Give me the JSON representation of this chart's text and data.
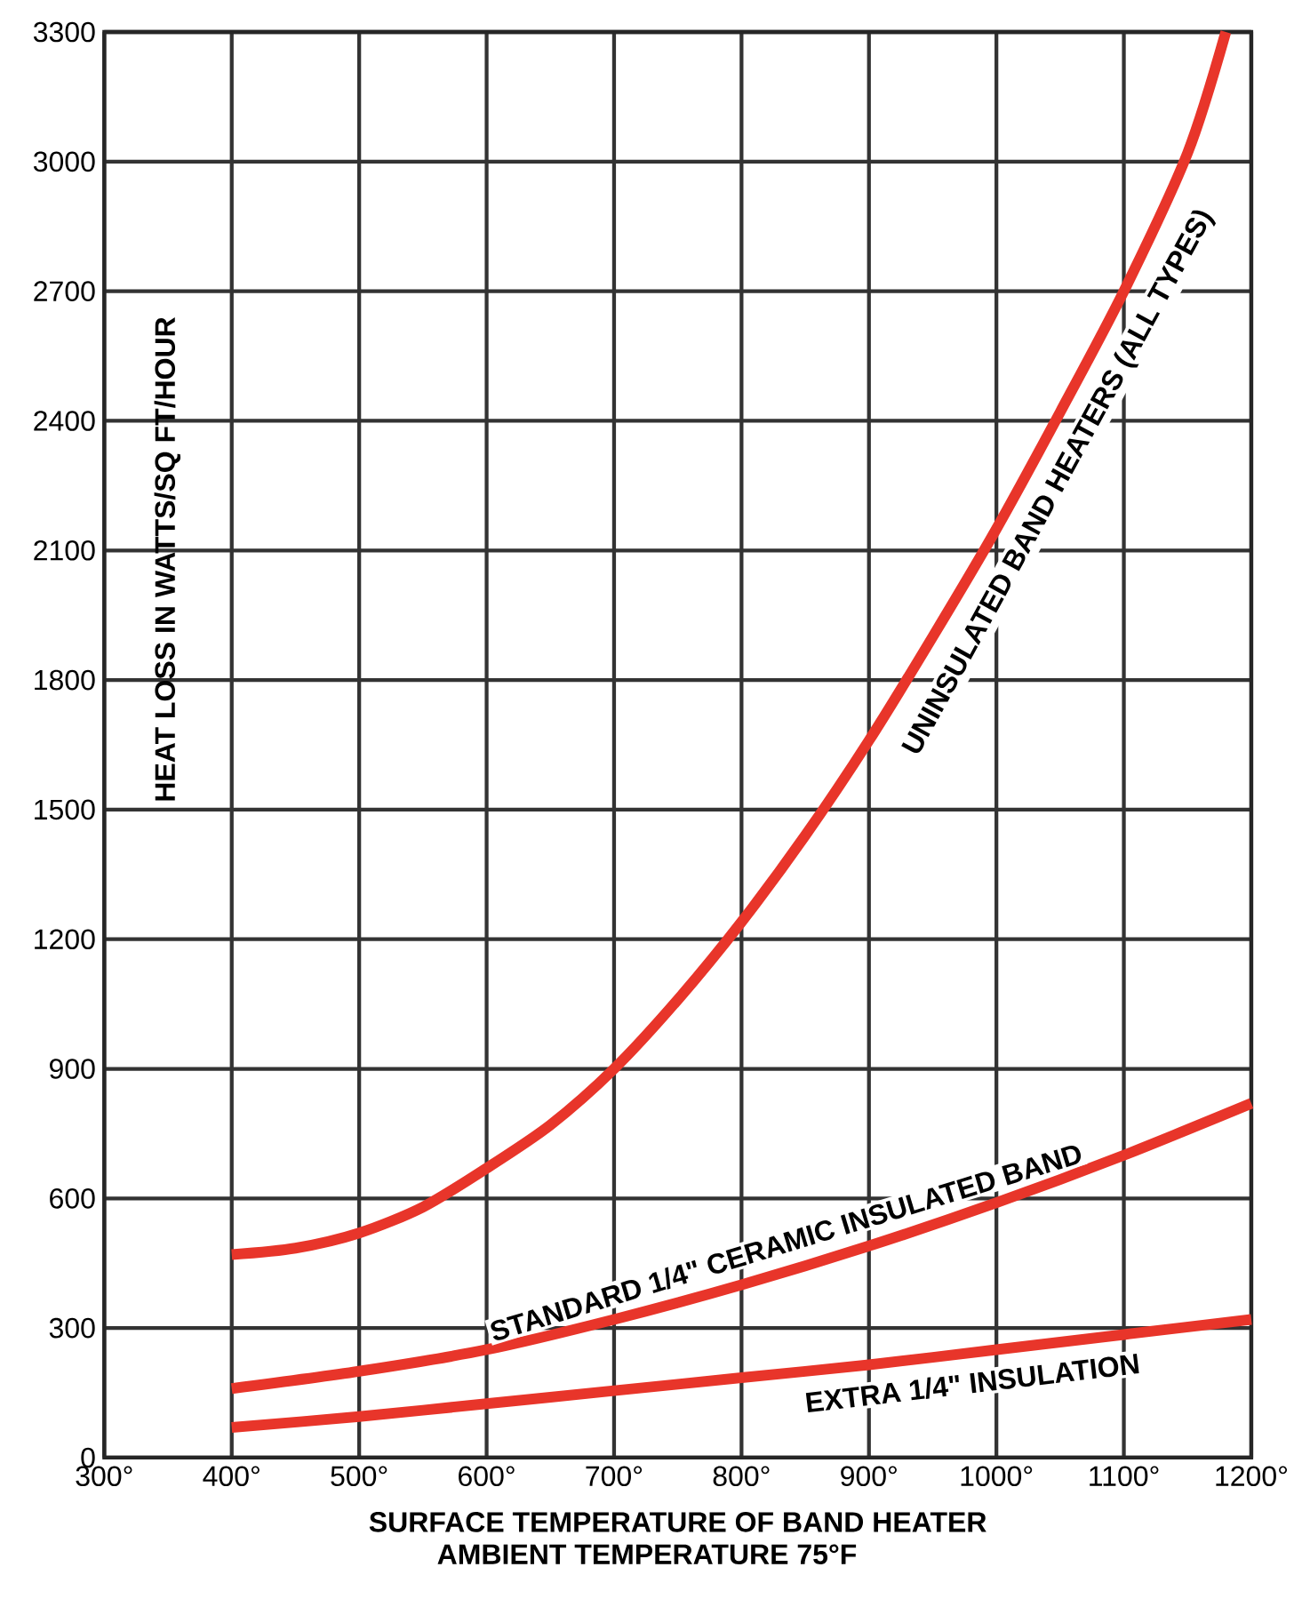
{
  "chart_data": {
    "type": "line",
    "xlabel": "SURFACE TEMPERATURE OF BAND HEATER",
    "ylabel": "HEAT LOSS IN WATTS/SQ FT/HOUR",
    "annotations": [
      "AMBIENT TEMPERATURE 75°F"
    ],
    "xlim": [
      300,
      1200
    ],
    "ylim": [
      0,
      3300
    ],
    "xticks": [
      {
        "value": 300,
        "label": "300°"
      },
      {
        "value": 400,
        "label": "400°"
      },
      {
        "value": 500,
        "label": "500°"
      },
      {
        "value": 600,
        "label": "600°"
      },
      {
        "value": 700,
        "label": "700°"
      },
      {
        "value": 800,
        "label": "800°"
      },
      {
        "value": 900,
        "label": "900°"
      },
      {
        "value": 1000,
        "label": "1000°"
      },
      {
        "value": 1100,
        "label": "1100°"
      },
      {
        "value": 1200,
        "label": "1200°"
      }
    ],
    "yticks": [
      0,
      300,
      600,
      900,
      1200,
      1500,
      1800,
      2100,
      2400,
      2700,
      3000,
      3300
    ],
    "grid": true,
    "marker": "none",
    "line_style": "solid",
    "series": [
      {
        "name": "UNINSULATED BAND HEATERS (ALL TYPES)",
        "color": "#e8352a",
        "x": [
          400,
          450,
          500,
          550,
          600,
          650,
          700,
          750,
          800,
          850,
          900,
          950,
          1000,
          1050,
          1100,
          1150,
          1180
        ],
        "values": [
          470,
          485,
          520,
          580,
          670,
          770,
          900,
          1060,
          1240,
          1440,
          1660,
          1900,
          2150,
          2420,
          2700,
          3020,
          3300
        ]
      },
      {
        "name": "STANDARD 1/4\" CERAMIC INSULATED BAND",
        "color": "#e8352a",
        "x": [
          400,
          500,
          600,
          700,
          800,
          900,
          1000,
          1100,
          1200
        ],
        "values": [
          160,
          200,
          250,
          320,
          400,
          490,
          590,
          700,
          820
        ]
      },
      {
        "name": "EXTRA 1/4\" INSULATION",
        "color": "#e8352a",
        "x": [
          400,
          500,
          600,
          700,
          800,
          900,
          1000,
          1100,
          1200
        ],
        "values": [
          70,
          95,
          125,
          155,
          185,
          215,
          250,
          285,
          320
        ]
      }
    ]
  }
}
